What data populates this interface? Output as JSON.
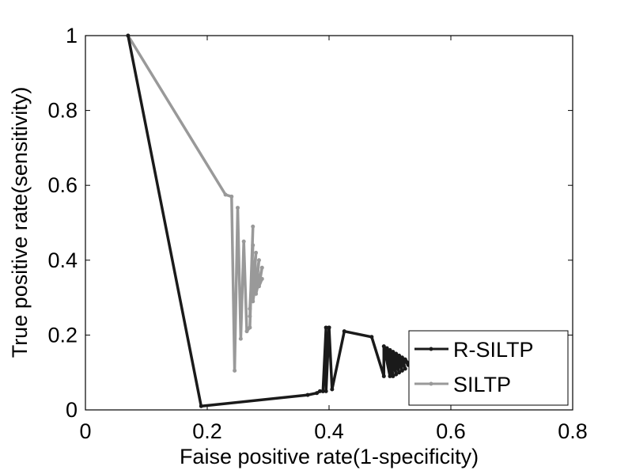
{
  "chart_data": {
    "type": "line",
    "title": "",
    "xlabel": "Faise positive rate(1-specificity)",
    "ylabel": "True positive rate(sensitivity)",
    "xlim": [
      0,
      0.8
    ],
    "ylim": [
      0,
      1
    ],
    "xticks": [
      0,
      0.2,
      0.4,
      0.6,
      0.8
    ],
    "xtick_labels": [
      "0",
      "0.2",
      "0.4",
      "0.6",
      "0.8"
    ],
    "yticks": [
      0,
      0.2,
      0.4,
      0.6,
      0.8,
      1
    ],
    "ytick_labels": [
      "0",
      "0.2",
      "0.4",
      "0.6",
      "0.8",
      "1"
    ],
    "grid": false,
    "legend": {
      "position": "bottom-right"
    },
    "series": [
      {
        "name": "R-SILTP",
        "color": "#1a1a1a",
        "x": [
          0.07,
          0.19,
          0.365,
          0.38,
          0.385,
          0.39,
          0.395,
          0.39,
          0.4,
          0.395,
          0.4,
          0.405,
          0.425,
          0.47,
          0.49,
          0.49,
          0.5,
          0.495,
          0.505,
          0.5,
          0.51,
          0.505,
          0.515,
          0.51,
          0.52,
          0.515,
          0.525,
          0.52,
          0.53,
          0.525,
          0.53
        ],
        "y": [
          1.0,
          0.01,
          0.04,
          0.045,
          0.05,
          0.05,
          0.22,
          0.05,
          0.22,
          0.05,
          0.22,
          0.055,
          0.21,
          0.195,
          0.09,
          0.17,
          0.09,
          0.165,
          0.09,
          0.16,
          0.095,
          0.155,
          0.1,
          0.15,
          0.105,
          0.145,
          0.11,
          0.14,
          0.12,
          0.135,
          0.125
        ]
      },
      {
        "name": "SILTP",
        "color": "#999999",
        "x": [
          0.07,
          0.23,
          0.24,
          0.245,
          0.25,
          0.255,
          0.26,
          0.265,
          0.27,
          0.275,
          0.27,
          0.275,
          0.27,
          0.28,
          0.275,
          0.285,
          0.28,
          0.29,
          0.285,
          0.29
        ],
        "y": [
          1.0,
          0.575,
          0.57,
          0.105,
          0.54,
          0.19,
          0.45,
          0.21,
          0.22,
          0.49,
          0.25,
          0.44,
          0.27,
          0.42,
          0.29,
          0.4,
          0.31,
          0.38,
          0.33,
          0.35
        ]
      }
    ]
  }
}
